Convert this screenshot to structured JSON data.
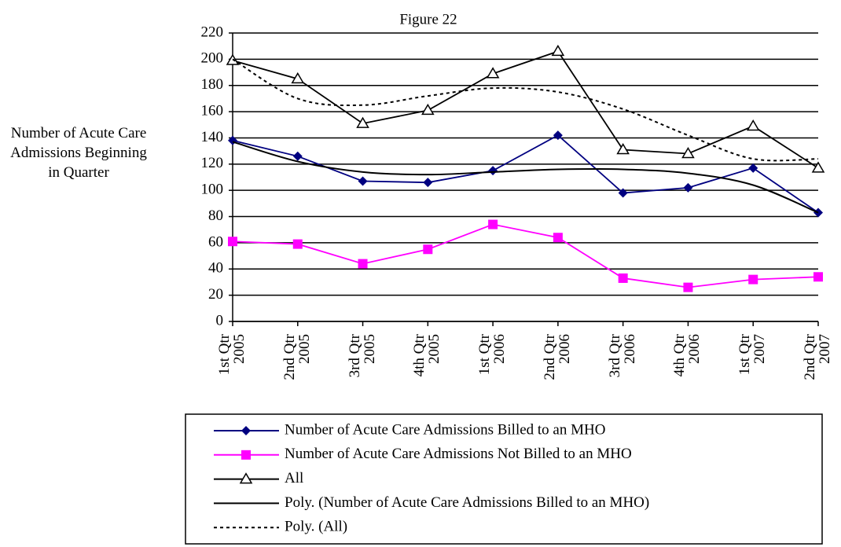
{
  "chart_data": {
    "type": "line",
    "title": "Figure 22",
    "y_label": "Number of Acute Care Admissions Beginning in Quarter",
    "categories": [
      "1st Qtr 2005",
      "2nd Qtr 2005",
      "3rd Qtr 2005",
      "4th Qtr 2005",
      "1st Qtr 2006",
      "2nd Qtr 2006",
      "3rd Qtr 2006",
      "4th Qtr 2006",
      "1st Qtr 2007",
      "2nd Qtr 2007"
    ],
    "series": [
      {
        "name": "Number of Acute Care Admissions Billed to an MHO",
        "color": "#000080",
        "marker": "diamond",
        "values": [
          138,
          126,
          107,
          106,
          115,
          142,
          98,
          102,
          117,
          83
        ]
      },
      {
        "name": "Number of Acute Care Admissions Not Billed to an MHO",
        "color": "#ff00ff",
        "marker": "square",
        "values": [
          61,
          59,
          44,
          55,
          74,
          64,
          33,
          26,
          32,
          34
        ]
      },
      {
        "name": "All",
        "color": "#000000",
        "marker": "triangle",
        "values": [
          199,
          185,
          151,
          161,
          189,
          206,
          131,
          128,
          149,
          117
        ]
      },
      {
        "name": "Poly. (Number of Acute Care Admissions Billed to an MHO)",
        "color": "#000000",
        "smooth": true,
        "values": [
          137,
          122,
          114,
          112,
          114,
          116,
          116,
          113,
          104,
          83
        ]
      },
      {
        "name": "Poly. (All)",
        "color": "#000000",
        "smooth": true,
        "dash": "4 4",
        "values": [
          200,
          170,
          165,
          172,
          178,
          175,
          162,
          142,
          124,
          124
        ]
      }
    ],
    "ylim": [
      0,
      220
    ],
    "yticks": [
      0,
      20,
      40,
      60,
      80,
      100,
      120,
      140,
      160,
      180,
      200,
      220
    ],
    "grid": true,
    "legend": "bottom"
  }
}
